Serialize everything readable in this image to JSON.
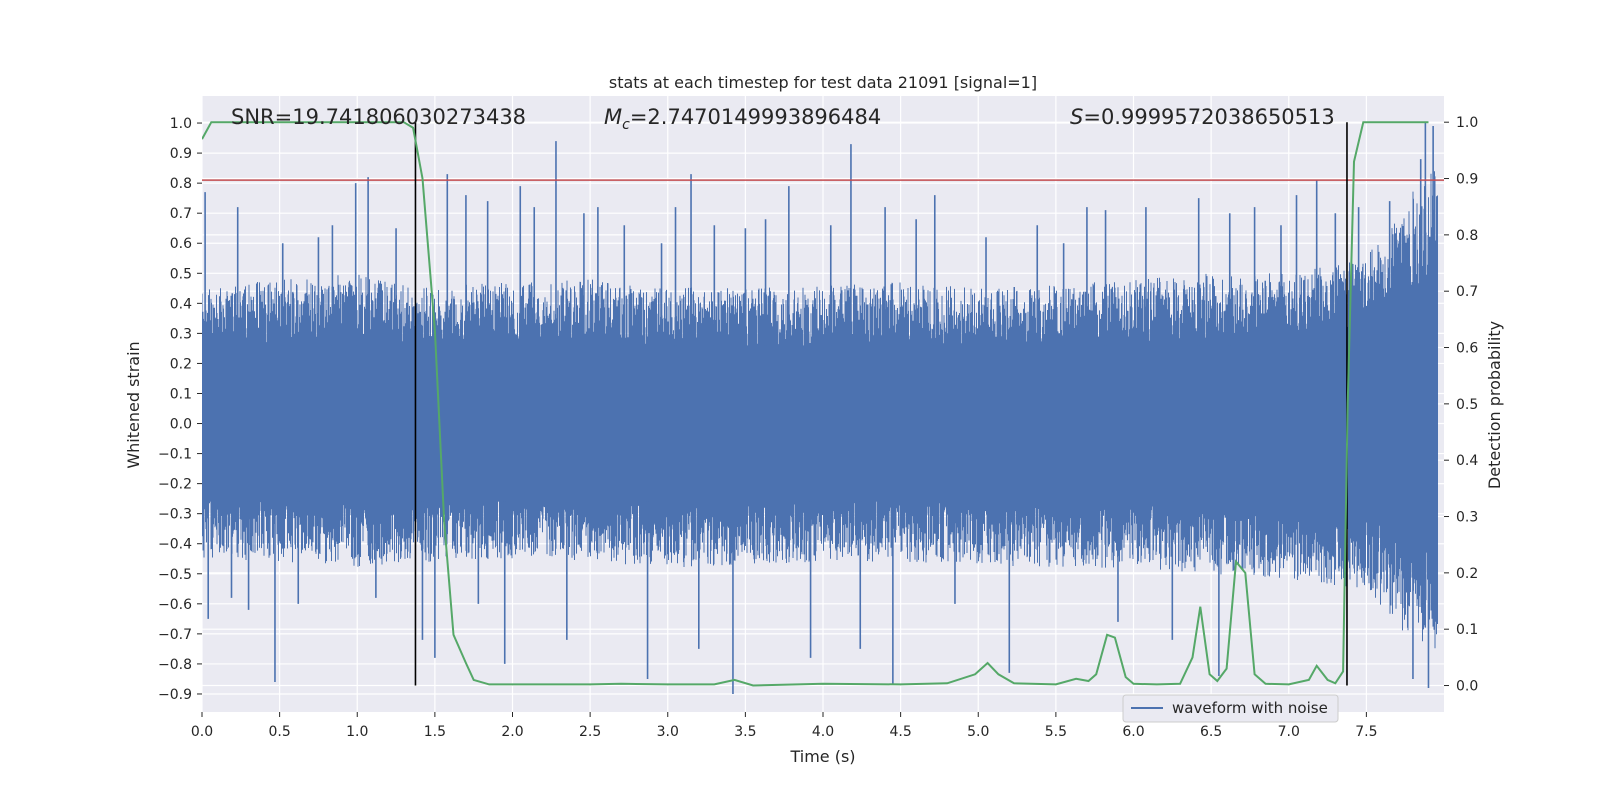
{
  "chart_data": {
    "type": "line",
    "title": "stats at each timestep for test data 21091 [signal=1]",
    "xlabel": "Time (s)",
    "ylabel": "Whitened strain",
    "y2label": "Detection probability",
    "xlim": [
      0.0,
      8.0
    ],
    "ylim": [
      -0.96,
      1.09
    ],
    "y2lim": [
      -0.047,
      1.0465
    ],
    "xticks": [
      "0.0",
      "0.5",
      "1.0",
      "1.5",
      "2.0",
      "2.5",
      "3.0",
      "3.5",
      "4.0",
      "4.5",
      "5.0",
      "5.5",
      "6.0",
      "6.5",
      "7.0",
      "7.5"
    ],
    "yticks": [
      "1.0",
      "0.9",
      "0.8",
      "0.7",
      "0.6",
      "0.5",
      "0.4",
      "0.3",
      "0.2",
      "0.1",
      "0.0",
      "−0.1",
      "−0.2",
      "−0.3",
      "−0.4",
      "−0.5",
      "−0.6",
      "−0.7",
      "−0.8",
      "−0.9"
    ],
    "y2ticks": [
      "1.0",
      "0.9",
      "0.8",
      "0.7",
      "0.6",
      "0.5",
      "0.4",
      "0.3",
      "0.2",
      "0.1",
      "0.0"
    ],
    "annotations": {
      "snr": "SNR=19.741806030273438",
      "mc_symbol": "M",
      "mc_sub": "c",
      "mc_value": "=2.7470149993896484",
      "s_symbol": "S",
      "s_value": "=0.9999572038650513"
    },
    "threshold": 0.81,
    "signal_window": [
      1.375,
      7.375
    ],
    "waveform_envelope": {
      "t": [
        0.0,
        0.5,
        1.0,
        1.375,
        1.5,
        2.0,
        2.5,
        3.0,
        3.5,
        4.0,
        4.5,
        5.0,
        5.5,
        6.0,
        6.5,
        7.0,
        7.5,
        7.75,
        7.95
      ],
      "upper": [
        0.45,
        0.48,
        0.5,
        0.45,
        0.46,
        0.47,
        0.48,
        0.46,
        0.45,
        0.46,
        0.47,
        0.45,
        0.46,
        0.48,
        0.5,
        0.5,
        0.55,
        0.75,
        0.85
      ],
      "lower": [
        -0.45,
        -0.46,
        -0.48,
        -0.46,
        -0.46,
        -0.45,
        -0.46,
        -0.48,
        -0.47,
        -0.46,
        -0.46,
        -0.47,
        -0.48,
        -0.48,
        -0.5,
        -0.52,
        -0.55,
        -0.7,
        -0.75
      ]
    },
    "series": [
      {
        "name": "waveform with noise",
        "color": "#4c72b0",
        "spikes": {
          "t": [
            0.02,
            0.04,
            0.19,
            0.23,
            0.3,
            0.47,
            0.52,
            0.62,
            0.75,
            0.84,
            0.99,
            1.07,
            1.12,
            1.25,
            1.42,
            1.5,
            1.58,
            1.7,
            1.78,
            1.84,
            1.95,
            2.05,
            2.14,
            2.28,
            2.35,
            2.46,
            2.55,
            2.72,
            2.87,
            2.96,
            3.05,
            3.15,
            3.2,
            3.3,
            3.42,
            3.5,
            3.63,
            3.78,
            3.92,
            4.05,
            4.18,
            4.24,
            4.4,
            4.45,
            4.6,
            4.72,
            4.85,
            5.05,
            5.2,
            5.38,
            5.55,
            5.7,
            5.82,
            5.9,
            6.08,
            6.25,
            6.42,
            6.55,
            6.62,
            6.78,
            6.95,
            7.05,
            7.18,
            7.3,
            7.45,
            7.65,
            7.8,
            7.85,
            7.88,
            7.9,
            7.93
          ],
          "v": [
            0.77,
            -0.65,
            -0.58,
            0.72,
            -0.62,
            -0.86,
            0.6,
            -0.6,
            0.62,
            0.66,
            0.8,
            0.82,
            -0.58,
            0.65,
            -0.72,
            -0.78,
            0.83,
            0.76,
            -0.6,
            0.74,
            -0.8,
            0.79,
            0.72,
            0.94,
            -0.72,
            0.7,
            0.72,
            0.66,
            -0.85,
            0.6,
            0.72,
            0.83,
            -0.75,
            0.66,
            -0.9,
            0.65,
            0.68,
            0.79,
            -0.78,
            0.66,
            0.93,
            -0.75,
            0.72,
            -0.87,
            0.68,
            0.76,
            -0.6,
            0.62,
            -0.83,
            0.66,
            0.6,
            0.72,
            0.71,
            -0.66,
            0.72,
            -0.72,
            0.75,
            -0.84,
            0.7,
            0.72,
            0.66,
            0.76,
            0.81,
            0.7,
            0.72,
            0.74,
            -0.85,
            0.88,
            1.0,
            -0.88,
            0.99
          ]
        }
      },
      {
        "name": "detection probability",
        "color": "#55a868",
        "axis": "right",
        "t": [
          0.0,
          0.06,
          1.3,
          1.36,
          1.42,
          1.5,
          1.56,
          1.62,
          1.7,
          1.75,
          1.85,
          2.0,
          2.5,
          2.7,
          3.0,
          3.3,
          3.43,
          3.55,
          4.0,
          4.5,
          4.8,
          4.98,
          5.06,
          5.13,
          5.23,
          5.5,
          5.63,
          5.71,
          5.76,
          5.83,
          5.88,
          5.95,
          6.0,
          6.15,
          6.3,
          6.38,
          6.43,
          6.49,
          6.54,
          6.6,
          6.66,
          6.72,
          6.78,
          6.85,
          7.0,
          7.13,
          7.18,
          7.25,
          7.3,
          7.35,
          7.38,
          7.42,
          7.48,
          7.55,
          7.7,
          7.9
        ],
        "v": [
          0.97,
          1.0,
          1.0,
          0.99,
          0.9,
          0.63,
          0.29,
          0.09,
          0.04,
          0.01,
          0.002,
          0.002,
          0.002,
          0.003,
          0.002,
          0.002,
          0.01,
          0.0,
          0.003,
          0.002,
          0.004,
          0.02,
          0.04,
          0.02,
          0.004,
          0.002,
          0.012,
          0.008,
          0.02,
          0.09,
          0.085,
          0.015,
          0.003,
          0.002,
          0.003,
          0.05,
          0.14,
          0.02,
          0.008,
          0.03,
          0.22,
          0.2,
          0.02,
          0.003,
          0.002,
          0.01,
          0.035,
          0.01,
          0.004,
          0.025,
          0.5,
          0.93,
          1.0,
          1.0,
          1.0,
          1.0
        ]
      }
    ],
    "legend": {
      "position": "bottom-right",
      "entries": [
        "waveform with noise"
      ]
    },
    "grid": true
  }
}
